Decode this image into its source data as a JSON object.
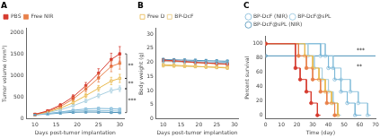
{
  "chart_data": [
    {
      "type": "line",
      "title": "A",
      "x_label": "Days post-tumor implantation",
      "y_label": "Tumor volume (mm³)",
      "x": [
        10,
        13,
        16,
        19,
        22,
        25,
        28,
        30
      ],
      "xlim": [
        8,
        31
      ],
      "xticks": [
        10,
        15,
        20,
        25,
        30
      ],
      "ylim": [
        0,
        2100
      ],
      "yticks": [
        0,
        500,
        1000,
        1500,
        2000
      ],
      "grid": false,
      "legend": "upper left",
      "series": [
        {
          "name": "PBS",
          "color": "#d63b2f",
          "marker": "square",
          "values": [
            105,
            185,
            320,
            510,
            770,
            1060,
            1380,
            1510
          ],
          "errors": [
            8,
            18,
            30,
            50,
            75,
            105,
            145,
            170
          ]
        },
        {
          "name": "Free NIR",
          "color": "#e8804a",
          "marker": "square",
          "values": [
            102,
            172,
            285,
            460,
            690,
            950,
            1220,
            1290
          ],
          "errors": [
            8,
            16,
            28,
            45,
            65,
            95,
            125,
            135
          ]
        },
        {
          "color": "#e8b84b",
          "marker": "open_square",
          "values": [
            100,
            155,
            248,
            375,
            540,
            710,
            880,
            940
          ],
          "errors": [
            8,
            14,
            22,
            36,
            50,
            65,
            85,
            95
          ]
        },
        {
          "color": "#a8cfe0",
          "marker": "open_square",
          "values": [
            98,
            145,
            210,
            305,
            415,
            540,
            660,
            700
          ],
          "errors": [
            8,
            12,
            18,
            27,
            37,
            50,
            60,
            65
          ]
        },
        {
          "color": "#7db8d8",
          "marker": "open_square",
          "values": [
            96,
            125,
            158,
            200,
            228,
            242,
            235,
            225
          ],
          "errors": [
            8,
            10,
            14,
            16,
            18,
            20,
            20,
            18
          ]
        },
        {
          "color": "#93c5de",
          "marker": "open_square",
          "values": [
            95,
            118,
            148,
            175,
            190,
            192,
            188,
            178
          ],
          "errors": [
            8,
            10,
            12,
            14,
            15,
            16,
            15,
            14
          ]
        },
        {
          "color": "#4a90b8",
          "marker": "open_square",
          "values": [
            94,
            112,
            134,
            152,
            158,
            156,
            150,
            145
          ],
          "errors": [
            8,
            9,
            11,
            12,
            13,
            13,
            12,
            11
          ]
        }
      ],
      "annotations": [
        {
          "label": "**",
          "y_top": 1510,
          "y_bot": 940
        },
        {
          "label": "**",
          "y_top": 940,
          "y_bot": 700
        },
        {
          "label": "***",
          "y_top": 700,
          "y_bot": 145
        }
      ]
    },
    {
      "type": "line",
      "title": "B",
      "x_label": "Days post-tumor implantation",
      "y_label": "Body weight (g)",
      "x": [
        10,
        13,
        16,
        19,
        22,
        25,
        28
      ],
      "xlim": [
        8,
        31
      ],
      "xticks": [
        10,
        15,
        20,
        25,
        30
      ],
      "ylim": [
        0,
        32
      ],
      "yticks": [
        0,
        5,
        10,
        15,
        20,
        25,
        30
      ],
      "grid": false,
      "legend": "upper left",
      "series": [
        {
          "color": "#d63b2f",
          "marker": "square",
          "values": [
            20.8,
            20.6,
            20.3,
            20.0,
            19.8,
            19.6,
            19.4
          ],
          "errors": [
            0.45,
            0.45,
            0.45,
            0.45,
            0.45,
            0.45,
            0.45
          ]
        },
        {
          "color": "#e8804a",
          "marker": "square",
          "values": [
            20.6,
            20.4,
            20.2,
            19.9,
            19.7,
            19.5,
            19.3
          ],
          "errors": [
            0.45,
            0.45,
            0.45,
            0.45,
            0.45,
            0.45,
            0.45
          ]
        },
        {
          "name": "Free D",
          "color": "#e8b84b",
          "marker": "open_square",
          "values": [
            19.2,
            19.0,
            18.8,
            18.6,
            18.4,
            18.2,
            18.0
          ],
          "errors": [
            0.45,
            0.45,
            0.45,
            0.45,
            0.45,
            0.45,
            0.45
          ]
        },
        {
          "name": "BP-DcF",
          "color": "#e8c878",
          "marker": "open_square",
          "values": [
            18.8,
            18.7,
            18.6,
            18.5,
            18.4,
            18.3,
            18.2
          ],
          "errors": [
            0.45,
            0.45,
            0.45,
            0.45,
            0.45,
            0.45,
            0.45
          ]
        },
        {
          "color": "#a8cfe0",
          "marker": "open_square",
          "values": [
            20.3,
            20.2,
            20.1,
            20.0,
            19.9,
            19.8,
            19.7
          ],
          "errors": [
            0.45,
            0.45,
            0.45,
            0.45,
            0.45,
            0.45,
            0.45
          ]
        },
        {
          "color": "#7db8d8",
          "marker": "open_square",
          "values": [
            20.6,
            20.5,
            20.4,
            20.3,
            20.2,
            20.1,
            20.0
          ],
          "errors": [
            0.45,
            0.45,
            0.45,
            0.45,
            0.45,
            0.45,
            0.45
          ]
        },
        {
          "color": "#4a90b8",
          "marker": "open_square",
          "values": [
            21.0,
            20.9,
            20.8,
            20.7,
            20.6,
            20.5,
            20.4
          ],
          "errors": [
            0.45,
            0.45,
            0.45,
            0.45,
            0.45,
            0.45,
            0.45
          ]
        }
      ]
    },
    {
      "type": "line",
      "title": "C",
      "x_label": "Time (day)",
      "y_label": "Percent survival",
      "xlim": [
        0,
        70
      ],
      "xticks": [
        0,
        10,
        20,
        30,
        40,
        50,
        60,
        70
      ],
      "ylim": [
        -5,
        110
      ],
      "yticks": [
        0,
        20,
        40,
        60,
        80,
        100
      ],
      "grid": false,
      "legend": "upper left",
      "series": [
        {
          "color": "#d63b2f",
          "marker": "circle",
          "x": [
            0,
            19,
            19,
            22,
            22,
            26,
            26,
            29,
            29,
            33,
            33,
            35
          ],
          "values": [
            100,
            100,
            66,
            66,
            50,
            50,
            33,
            33,
            17,
            17,
            0,
            0
          ],
          "marker_x": [
            0,
            19,
            22,
            26,
            29,
            33
          ],
          "marker_values": [
            100,
            66,
            50,
            33,
            17,
            0
          ]
        },
        {
          "color": "#e8804a",
          "marker": "circle",
          "x": [
            0,
            21,
            21,
            26,
            26,
            30,
            30,
            35,
            35,
            39,
            39,
            44,
            44,
            46
          ],
          "values": [
            100,
            100,
            83,
            83,
            66,
            66,
            50,
            50,
            33,
            33,
            17,
            17,
            0,
            0
          ],
          "marker_x": [
            0,
            21,
            26,
            30,
            35,
            39,
            44
          ],
          "marker_values": [
            100,
            83,
            66,
            50,
            33,
            17,
            0
          ]
        },
        {
          "color": "#e8b84b",
          "marker": "open_circle",
          "x": [
            0,
            25,
            25,
            30,
            30,
            34,
            34,
            38,
            38,
            42,
            42,
            46,
            46,
            47
          ],
          "values": [
            100,
            100,
            83,
            83,
            66,
            66,
            50,
            50,
            33,
            33,
            17,
            17,
            0,
            0
          ],
          "marker_x": [
            0,
            25,
            30,
            34,
            38,
            42,
            46
          ],
          "marker_values": [
            100,
            83,
            66,
            50,
            33,
            17,
            0
          ]
        },
        {
          "color": "#a8cfe0",
          "marker": "open_circle",
          "x": [
            0,
            27,
            27,
            31,
            31,
            36,
            36,
            40,
            40,
            43,
            43,
            46,
            46,
            48
          ],
          "values": [
            100,
            100,
            83,
            83,
            66,
            66,
            50,
            50,
            33,
            33,
            17,
            17,
            0,
            0
          ],
          "marker_x": [
            0,
            27,
            31,
            36,
            40,
            43,
            46
          ],
          "marker_values": [
            100,
            83,
            66,
            50,
            33,
            17,
            0
          ]
        },
        {
          "name": "BP-DcF (NIR)",
          "color": "#7db8d8",
          "marker": "open_circle",
          "x": [
            0,
            35,
            35,
            40,
            40,
            44,
            44,
            48,
            48,
            52,
            52,
            57,
            57,
            61
          ],
          "values": [
            100,
            100,
            83,
            83,
            66,
            66,
            50,
            50,
            33,
            33,
            17,
            17,
            0,
            0
          ],
          "marker_x": [
            0,
            35,
            40,
            44,
            48,
            52,
            57
          ],
          "marker_values": [
            100,
            83,
            66,
            50,
            33,
            17,
            0
          ]
        },
        {
          "name": "BP-DcF@sPL",
          "color": "#93c5de",
          "marker": "open_circle",
          "x": [
            0,
            38,
            38,
            43,
            43,
            48,
            48,
            54,
            54,
            59,
            59,
            65,
            65,
            67
          ],
          "values": [
            100,
            100,
            83,
            83,
            66,
            66,
            50,
            50,
            33,
            33,
            17,
            17,
            0,
            0
          ],
          "marker_x": [
            0,
            38,
            43,
            48,
            54,
            59,
            65
          ],
          "marker_values": [
            100,
            83,
            66,
            50,
            33,
            17,
            0
          ]
        },
        {
          "name": "BP-DcF@sPL (NIR)",
          "color": "#4a90b8",
          "marker": "open_circle",
          "x": [
            0,
            70
          ],
          "values": [
            83,
            83
          ],
          "marker_x": [
            0
          ],
          "marker_values": [
            83
          ]
        }
      ],
      "annotations": [
        {
          "label": "***",
          "x": 58,
          "y": 90
        },
        {
          "label": "**",
          "x": 58,
          "y": 68
        }
      ]
    }
  ]
}
